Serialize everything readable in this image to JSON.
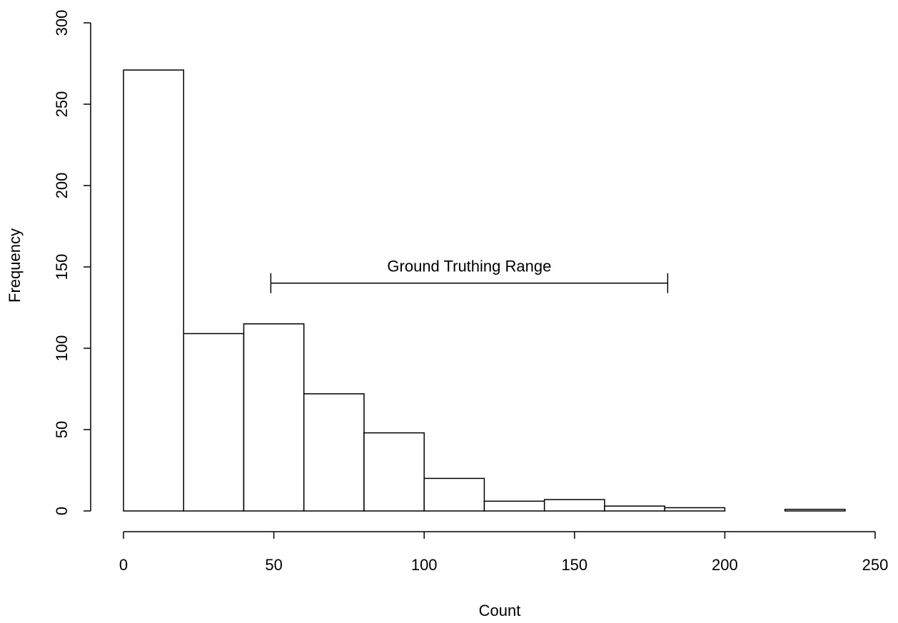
{
  "chart_data": {
    "type": "histogram",
    "bins": [
      0,
      20,
      40,
      60,
      80,
      100,
      120,
      140,
      160,
      180,
      200,
      220,
      240
    ],
    "values": [
      271,
      109,
      115,
      72,
      48,
      20,
      6,
      7,
      3,
      2,
      0,
      1
    ],
    "color": "#ffffff",
    "xlabel": "Count",
    "ylabel": "Frequency",
    "xlim": [
      0,
      250
    ],
    "xticks": [
      0,
      50,
      100,
      150,
      200,
      250
    ],
    "ylim": [
      0,
      300
    ],
    "yticks": [
      0,
      50,
      100,
      150,
      200,
      250,
      300
    ],
    "annotations": [
      {
        "text": "Ground Truthing Range",
        "x": [
          49,
          181
        ],
        "y": 140
      }
    ]
  }
}
